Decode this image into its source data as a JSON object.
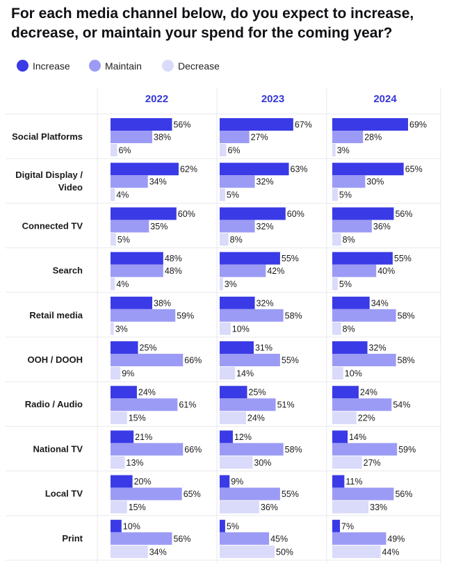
{
  "title": "For each media channel below, do you expect to increase, decrease, or maintain your spend for the coming year?",
  "colors": {
    "Increase": "#3a3ae6",
    "Maintain": "#9b9bf5",
    "Decrease": "#dadafb",
    "header": "#3535d9",
    "grid": "#e9e9ee"
  },
  "legend": [
    "Increase",
    "Maintain",
    "Decrease"
  ],
  "chart_data": {
    "type": "bar",
    "orientation": "horizontal",
    "panels": [
      "2022",
      "2023",
      "2024"
    ],
    "categories": [
      "Social Platforms",
      "Digital Display / Video",
      "Connected TV",
      "Search",
      "Retail media",
      "OOH / DOOH",
      "Radio / Audio",
      "National TV",
      "Local TV",
      "Print"
    ],
    "series": [
      {
        "name": "Increase",
        "values": [
          [
            56,
            62,
            60,
            48,
            38,
            25,
            24,
            21,
            20,
            10
          ],
          [
            67,
            63,
            60,
            55,
            32,
            31,
            25,
            12,
            9,
            5
          ],
          [
            69,
            65,
            56,
            55,
            34,
            32,
            24,
            14,
            11,
            7
          ]
        ]
      },
      {
        "name": "Maintain",
        "values": [
          [
            38,
            34,
            35,
            48,
            59,
            66,
            61,
            66,
            65,
            56
          ],
          [
            27,
            32,
            32,
            42,
            58,
            55,
            51,
            58,
            55,
            45
          ],
          [
            28,
            30,
            36,
            40,
            58,
            58,
            54,
            59,
            56,
            49
          ]
        ]
      },
      {
        "name": "Decrease",
        "values": [
          [
            6,
            4,
            5,
            4,
            3,
            9,
            15,
            13,
            15,
            34
          ],
          [
            6,
            5,
            8,
            3,
            10,
            14,
            24,
            30,
            36,
            50
          ],
          [
            3,
            5,
            8,
            5,
            8,
            10,
            22,
            27,
            33,
            44
          ]
        ]
      }
    ],
    "value_suffix": "%",
    "xlim": [
      0,
      100
    ]
  }
}
